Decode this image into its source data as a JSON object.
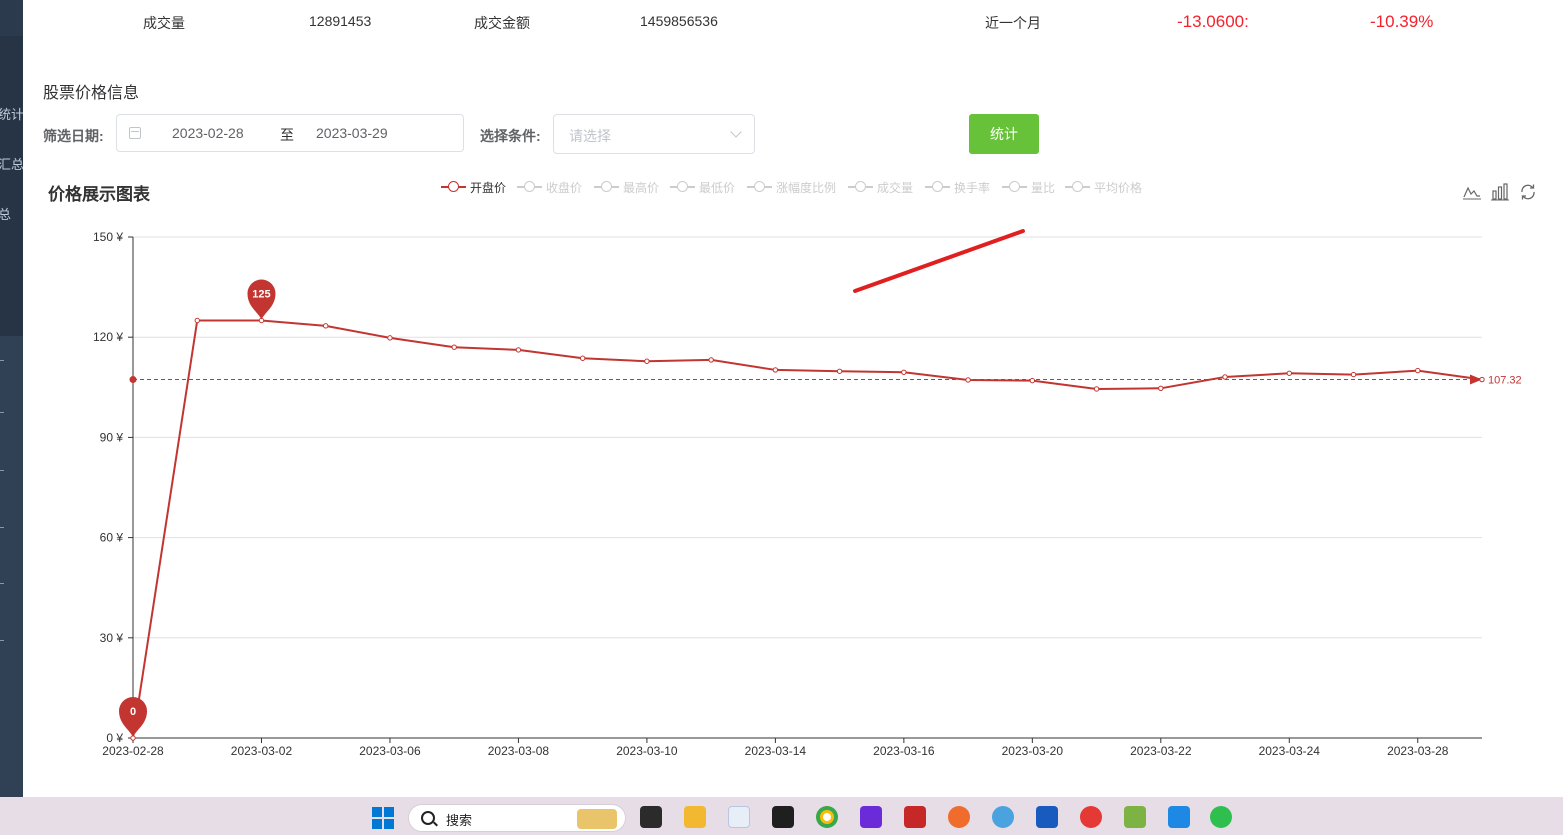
{
  "stats": {
    "volume_label": "成交量",
    "volume_value": "12891453",
    "amount_label": "成交金额",
    "amount_value": "1459856536",
    "period_label": "近一个月",
    "change_value": "-13.0600:",
    "change_pct": "-10.39%"
  },
  "sidebar": {
    "items": [
      "统计",
      "汇总",
      "总"
    ]
  },
  "section_title": "股票价格信息",
  "filter": {
    "date_label": "筛选日期:",
    "start_date": "2023-02-28",
    "range_sep": "至",
    "end_date": "2023-03-29",
    "condition_label": "选择条件:",
    "condition_placeholder": "请选择",
    "submit_label": "统计"
  },
  "colors": {
    "series": "#c23531",
    "button": "#67c23a",
    "negative": "#f5222d",
    "sidebar": "#304156"
  },
  "toolbox_icons": [
    "line-chart-icon",
    "bar-chart-icon",
    "restore-icon"
  ],
  "chart_data": {
    "type": "line",
    "title": "价格展示图表",
    "legend": {
      "placement": "top-center",
      "items": [
        {
          "name": "开盘价",
          "active": true
        },
        {
          "name": "收盘价",
          "active": false
        },
        {
          "name": "最高价",
          "active": false
        },
        {
          "name": "最低价",
          "active": false
        },
        {
          "name": "涨幅度比例",
          "active": false
        },
        {
          "name": "成交量",
          "active": false
        },
        {
          "name": "换手率",
          "active": false
        },
        {
          "name": "量比",
          "active": false
        },
        {
          "name": "平均价格",
          "active": false
        }
      ]
    },
    "x_labels": [
      "2023-02-28",
      "2023-03-02",
      "2023-03-06",
      "2023-03-08",
      "2023-03-10",
      "2023-03-14",
      "2023-03-16",
      "2023-03-20",
      "2023-03-22",
      "2023-03-24",
      "2023-03-28"
    ],
    "ylim": [
      0,
      150
    ],
    "y_ticks": [
      0,
      30,
      60,
      90,
      120,
      150
    ],
    "y_unit": "¥",
    "grid": true,
    "series": [
      {
        "name": "开盘价",
        "values": [
          0,
          125,
          125,
          123.4,
          119.8,
          117,
          116.2,
          113.7,
          112.8,
          113.2,
          110.2,
          109.8,
          109.5,
          107.2,
          107,
          104.5,
          104.7,
          108.1,
          109.2,
          108.8,
          110,
          107.32
        ]
      }
    ],
    "mark_points": [
      {
        "label": "125",
        "index": 2,
        "value": 125
      },
      {
        "label": "0",
        "index": 0,
        "value": 0
      }
    ],
    "mark_line": {
      "label": "107.32",
      "value": 107.32
    }
  },
  "taskbar": {
    "search_label": "搜索",
    "apps": [
      "windows-start-icon",
      "folder-icon",
      "terminal-icon",
      "chrome-icon",
      "jetbrains-icon",
      "wps-icon",
      "browser-icon",
      "word-icon",
      "app-icon",
      "notepad-icon",
      "dingtalk-icon",
      "wechat-icon"
    ]
  }
}
